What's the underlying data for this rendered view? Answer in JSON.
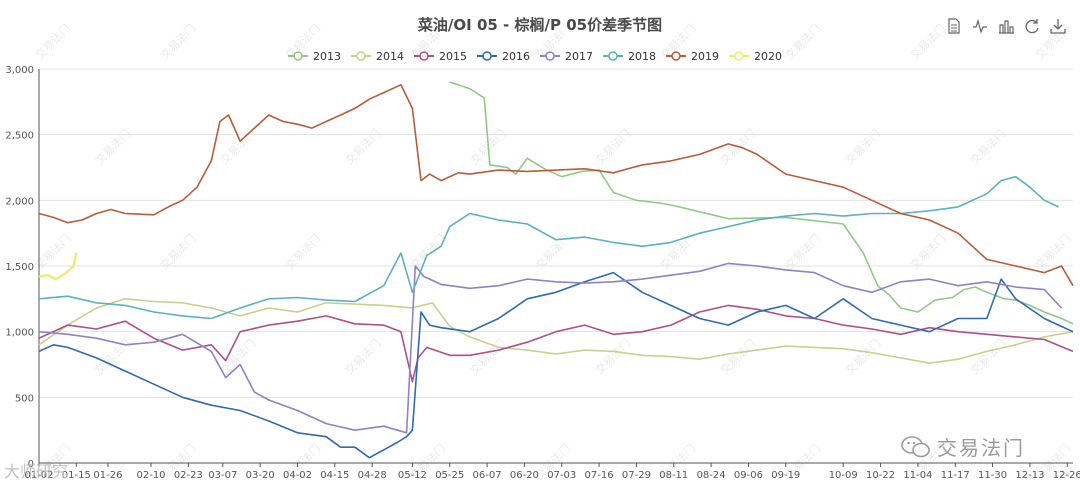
{
  "toolbar": {
    "icons": [
      "data-view-icon",
      "line-chart-icon",
      "bar-chart-icon",
      "restore-icon",
      "download-icon"
    ]
  },
  "watermark": {
    "logo_text": "交易法门",
    "source_text": "大师研究"
  },
  "chart_data": {
    "type": "line",
    "title": "菜油/OI 05 - 棕榈/P 05价差季节图",
    "xlabel": "",
    "ylabel": "",
    "ylim": [
      0,
      3000
    ],
    "yticks": [
      0,
      500,
      1000,
      1500,
      2000,
      2500,
      3000
    ],
    "ytick_labels": [
      "0",
      "500",
      "1,000",
      "1,500",
      "2,000",
      "2,500",
      "3,000"
    ],
    "x_index_range": [
      0,
      360
    ],
    "xtick_labels": [
      "01-02",
      "01-15",
      "01-26",
      "02-10",
      "02-23",
      "03-07",
      "03-20",
      "04-02",
      "04-15",
      "04-28",
      "05-12",
      "05-25",
      "06-07",
      "06-20",
      "07-03",
      "07-16",
      "07-29",
      "08-11",
      "08-24",
      "09-06",
      "09-19",
      "10-09",
      "10-22",
      "11-04",
      "11-17",
      "11-30",
      "12-13",
      "12-26"
    ],
    "xtick_positions": [
      0,
      13,
      24,
      39,
      52,
      64,
      77,
      90,
      103,
      116,
      130,
      143,
      156,
      169,
      182,
      195,
      208,
      221,
      234,
      247,
      260,
      280,
      293,
      306,
      319,
      332,
      345,
      358
    ],
    "grid": true,
    "legend": "top-center",
    "series": [
      {
        "name": "2013",
        "color": "#8fca84",
        "x": [
          143,
          146,
          150,
          155,
          157,
          160,
          163,
          166,
          170,
          176,
          182,
          189,
          195,
          200,
          208,
          216,
          221,
          240,
          260,
          280,
          287,
          292,
          296,
          300,
          306,
          312,
          318,
          322,
          326,
          330,
          336,
          340,
          345,
          350,
          356,
          360
        ],
        "values": [
          2900,
          2880,
          2850,
          2780,
          2270,
          2260,
          2250,
          2200,
          2320,
          2240,
          2180,
          2220,
          2230,
          2060,
          2000,
          1980,
          1960,
          1860,
          1870,
          1820,
          1600,
          1350,
          1280,
          1180,
          1150,
          1240,
          1260,
          1320,
          1340,
          1300,
          1250,
          1240,
          1200,
          1150,
          1100,
          1060
        ]
      },
      {
        "name": "2014",
        "color": "#c9d08a",
        "x": [
          0,
          10,
          20,
          30,
          40,
          50,
          60,
          70,
          80,
          90,
          100,
          110,
          120,
          125,
          130,
          137,
          143,
          150,
          160,
          170,
          180,
          190,
          200,
          210,
          220,
          230,
          240,
          250,
          260,
          270,
          280,
          290,
          300,
          310,
          320,
          330,
          340,
          350,
          360
        ],
        "values": [
          900,
          1050,
          1180,
          1250,
          1230,
          1220,
          1180,
          1120,
          1180,
          1150,
          1220,
          1210,
          1200,
          1190,
          1180,
          1220,
          1040,
          960,
          880,
          860,
          830,
          860,
          850,
          820,
          810,
          790,
          830,
          860,
          890,
          880,
          870,
          840,
          800,
          760,
          790,
          850,
          900,
          960,
          1000
        ]
      },
      {
        "name": "2015",
        "color": "#b14f86",
        "x": [
          0,
          10,
          20,
          30,
          40,
          50,
          60,
          65,
          70,
          80,
          90,
          100,
          110,
          120,
          126,
          130,
          132,
          135,
          143,
          150,
          160,
          170,
          180,
          190,
          200,
          210,
          220,
          230,
          240,
          250,
          260,
          270,
          280,
          290,
          300,
          310,
          320,
          330,
          340,
          350,
          360
        ],
        "values": [
          950,
          1050,
          1020,
          1080,
          950,
          860,
          900,
          780,
          1000,
          1050,
          1080,
          1120,
          1060,
          1050,
          1000,
          620,
          800,
          880,
          820,
          820,
          860,
          920,
          1000,
          1050,
          980,
          1000,
          1050,
          1150,
          1200,
          1170,
          1120,
          1100,
          1050,
          1020,
          980,
          1030,
          1000,
          980,
          960,
          940,
          850
        ]
      },
      {
        "name": "2016",
        "color": "#2e6bb0",
        "x": [
          0,
          5,
          10,
          20,
          30,
          40,
          50,
          60,
          70,
          80,
          90,
          100,
          105,
          110,
          115,
          120,
          125,
          128,
          130,
          133,
          136,
          140,
          150,
          160,
          170,
          180,
          190,
          200,
          210,
          220,
          230,
          240,
          250,
          260,
          270,
          280,
          290,
          300,
          310,
          320,
          330,
          335,
          340,
          350,
          355,
          360
        ],
        "values": [
          850,
          900,
          880,
          800,
          700,
          600,
          500,
          440,
          400,
          320,
          230,
          200,
          120,
          120,
          40,
          100,
          160,
          200,
          250,
          1150,
          1050,
          1030,
          1000,
          1100,
          1250,
          1300,
          1380,
          1450,
          1300,
          1200,
          1100,
          1050,
          1150,
          1200,
          1100,
          1250,
          1100,
          1050,
          1000,
          1100,
          1100,
          1400,
          1250,
          1100,
          1050,
          1000
        ]
      },
      {
        "name": "2017",
        "color": "#8f82c9",
        "x": [
          0,
          10,
          20,
          30,
          40,
          50,
          60,
          65,
          70,
          75,
          80,
          90,
          100,
          110,
          120,
          128,
          131,
          134,
          140,
          150,
          160,
          170,
          180,
          190,
          200,
          210,
          220,
          230,
          240,
          250,
          260,
          270,
          280,
          290,
          300,
          310,
          320,
          330,
          340,
          350,
          356
        ],
        "values": [
          1000,
          980,
          950,
          900,
          920,
          980,
          850,
          650,
          750,
          540,
          480,
          400,
          300,
          250,
          280,
          230,
          1500,
          1420,
          1360,
          1330,
          1350,
          1400,
          1380,
          1370,
          1380,
          1400,
          1430,
          1460,
          1520,
          1500,
          1470,
          1450,
          1350,
          1300,
          1380,
          1400,
          1350,
          1380,
          1340,
          1320,
          1180
        ]
      },
      {
        "name": "2018",
        "color": "#5bb1c2",
        "x": [
          0,
          10,
          20,
          30,
          40,
          50,
          60,
          70,
          80,
          90,
          100,
          110,
          120,
          126,
          130,
          135,
          140,
          143,
          150,
          160,
          170,
          180,
          190,
          200,
          210,
          220,
          230,
          240,
          250,
          260,
          270,
          280,
          290,
          300,
          310,
          320,
          330,
          335,
          340,
          345,
          350,
          355
        ],
        "values": [
          1250,
          1270,
          1220,
          1200,
          1150,
          1120,
          1100,
          1180,
          1250,
          1260,
          1240,
          1230,
          1350,
          1600,
          1300,
          1580,
          1650,
          1800,
          1900,
          1850,
          1820,
          1700,
          1720,
          1680,
          1650,
          1680,
          1750,
          1800,
          1850,
          1880,
          1900,
          1880,
          1900,
          1900,
          1920,
          1950,
          2050,
          2150,
          2180,
          2100,
          2000,
          1950
        ]
      },
      {
        "name": "2019",
        "color": "#b85c3a",
        "x": [
          0,
          5,
          10,
          15,
          20,
          25,
          30,
          40,
          45,
          50,
          55,
          60,
          63,
          66,
          70,
          75,
          80,
          85,
          90,
          95,
          100,
          105,
          110,
          115,
          120,
          126,
          130,
          133,
          136,
          140,
          146,
          150,
          160,
          170,
          180,
          190,
          200,
          210,
          220,
          230,
          240,
          245,
          250,
          260,
          270,
          280,
          290,
          300,
          310,
          320,
          330,
          340,
          350,
          356,
          360
        ],
        "values": [
          1900,
          1870,
          1830,
          1850,
          1900,
          1930,
          1900,
          1890,
          1950,
          2000,
          2100,
          2300,
          2600,
          2650,
          2450,
          2550,
          2650,
          2600,
          2580,
          2550,
          2600,
          2650,
          2700,
          2770,
          2820,
          2880,
          2700,
          2150,
          2200,
          2150,
          2210,
          2200,
          2230,
          2220,
          2230,
          2240,
          2210,
          2270,
          2300,
          2350,
          2430,
          2400,
          2350,
          2200,
          2150,
          2100,
          2000,
          1900,
          1850,
          1750,
          1550,
          1500,
          1450,
          1500,
          1350
        ]
      },
      {
        "name": "2020",
        "color": "#f1ea6e",
        "x": [
          0,
          3,
          6,
          9,
          12,
          13
        ],
        "values": [
          1420,
          1430,
          1400,
          1440,
          1500,
          1600
        ]
      }
    ]
  }
}
